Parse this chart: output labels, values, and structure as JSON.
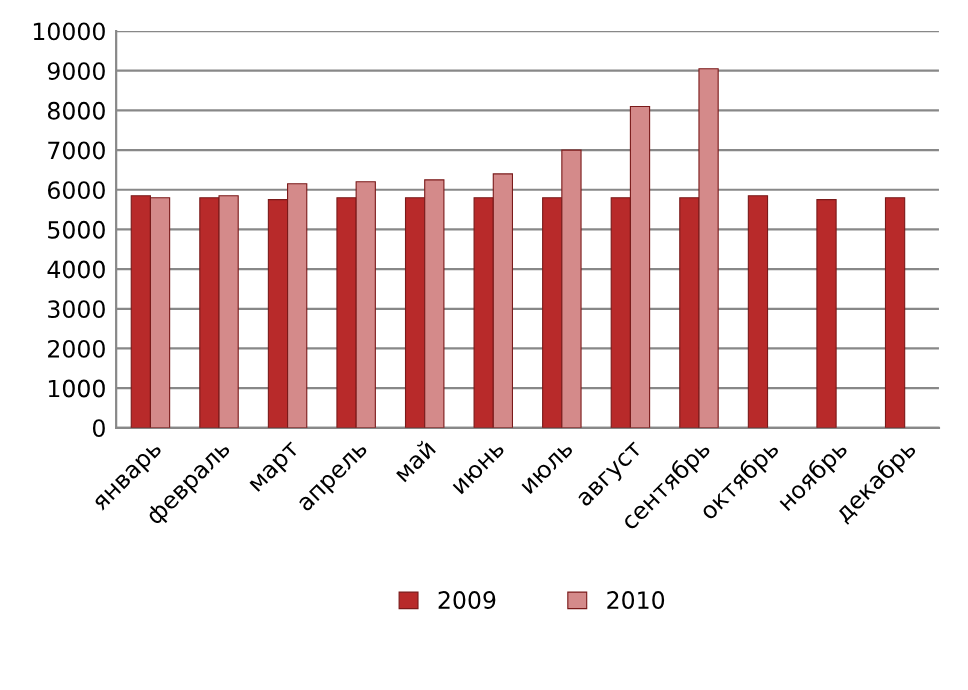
{
  "chart_data": {
    "type": "bar",
    "categories": [
      "январь",
      "февраль",
      "март",
      "апрель",
      "май",
      "июнь",
      "июль",
      "август",
      "сентябрь",
      "октябрь",
      "ноябрь",
      "декабрь"
    ],
    "series": [
      {
        "name": "2009",
        "color": "#b82a2a",
        "values": [
          5850,
          5800,
          5750,
          5800,
          5800,
          5800,
          5800,
          5800,
          5800,
          5850,
          5750,
          5800
        ]
      },
      {
        "name": "2010",
        "color": "#d48a8a",
        "values": [
          5800,
          5850,
          6150,
          6200,
          6250,
          6400,
          7000,
          8100,
          9050,
          null,
          null,
          null
        ]
      }
    ],
    "ylim": [
      0,
      10000
    ],
    "yticks": [
      0,
      1000,
      2000,
      3000,
      4000,
      5000,
      6000,
      7000,
      8000,
      9000,
      10000
    ],
    "grid": "y",
    "legend": "bottom"
  }
}
